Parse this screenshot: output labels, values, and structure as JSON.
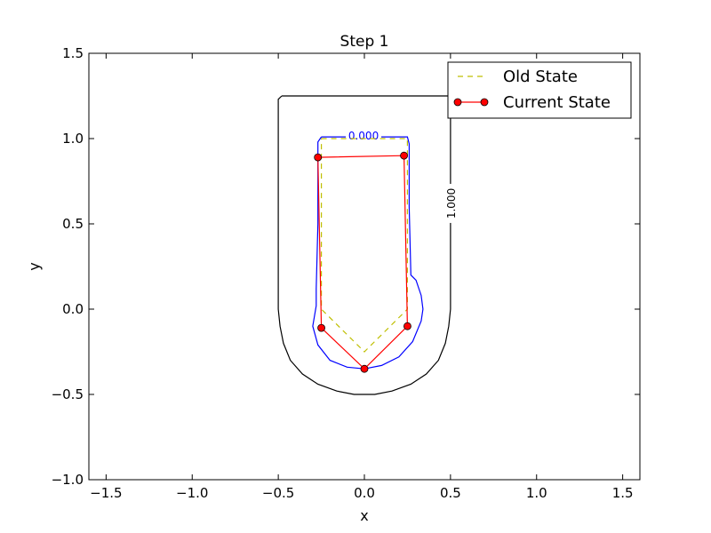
{
  "chart_data": {
    "type": "line",
    "title": "Step 1",
    "xlabel": "x",
    "ylabel": "y",
    "xlim": [
      -1.6,
      1.6
    ],
    "ylim": [
      -1.0,
      1.5
    ],
    "xticks": [
      -1.5,
      -1.0,
      -0.5,
      0.0,
      0.5,
      1.0,
      1.5
    ],
    "yticks": [
      -1.0,
      -0.5,
      0.0,
      0.5,
      1.0,
      1.5
    ],
    "xtick_labels": [
      "−1.5",
      "−1.0",
      "−0.5",
      "0.0",
      "0.5",
      "1.0",
      "1.5"
    ],
    "ytick_labels": [
      "−1.0",
      "−0.5",
      "0.0",
      "0.5",
      "1.0",
      "1.5"
    ],
    "grid": false,
    "legend_position": "top-right",
    "legend": [
      {
        "label": "Old State",
        "style": "dashed",
        "color": "#bfbf00"
      },
      {
        "label": "Current State",
        "style": "solid-marker",
        "color": "#ff0000"
      }
    ],
    "series": [
      {
        "name": "Old State",
        "color": "#bfbf00",
        "style": "dashed",
        "x": [
          -0.25,
          0.25,
          0.25,
          0.0,
          -0.25,
          -0.25
        ],
        "y": [
          1.0,
          1.0,
          0.0,
          -0.25,
          0.0,
          1.0
        ]
      },
      {
        "name": "Current State",
        "color": "#ff0000",
        "style": "solid",
        "marker": "circle",
        "x": [
          -0.27,
          0.23,
          0.25,
          0.0,
          -0.25,
          -0.27
        ],
        "y": [
          0.89,
          0.9,
          -0.1,
          -0.35,
          -0.11,
          0.89
        ]
      }
    ],
    "contours": [
      {
        "level_label": "0.000",
        "color": "#0000ff",
        "label_at": [
          -0.005,
          1.015
        ],
        "x": [
          -0.25,
          0.25,
          0.26,
          0.26,
          0.27,
          0.3,
          0.33,
          0.34,
          0.33,
          0.28,
          0.2,
          0.1,
          0.0,
          -0.1,
          -0.2,
          -0.27,
          -0.3,
          -0.28,
          -0.28,
          -0.27,
          -0.27,
          -0.25
        ],
        "y": [
          1.01,
          1.01,
          0.97,
          0.6,
          0.2,
          0.17,
          0.08,
          0.0,
          -0.07,
          -0.19,
          -0.28,
          -0.33,
          -0.35,
          -0.34,
          -0.3,
          -0.21,
          -0.1,
          0.02,
          0.12,
          0.5,
          0.98,
          1.01
        ]
      },
      {
        "level_label": "1.000",
        "color": "#000000",
        "label_at": [
          0.505,
          0.62
        ],
        "x": [
          -0.48,
          0.5,
          0.5,
          0.49,
          0.47,
          0.43,
          0.36,
          0.27,
          0.16,
          0.06,
          -0.06,
          -0.16,
          -0.27,
          -0.36,
          -0.43,
          -0.47,
          -0.49,
          -0.5,
          -0.5,
          -0.48
        ],
        "y": [
          1.25,
          1.25,
          0.0,
          -0.1,
          -0.2,
          -0.3,
          -0.38,
          -0.44,
          -0.48,
          -0.5,
          -0.5,
          -0.48,
          -0.44,
          -0.38,
          -0.3,
          -0.2,
          -0.1,
          0.0,
          1.23,
          1.25
        ]
      }
    ]
  }
}
